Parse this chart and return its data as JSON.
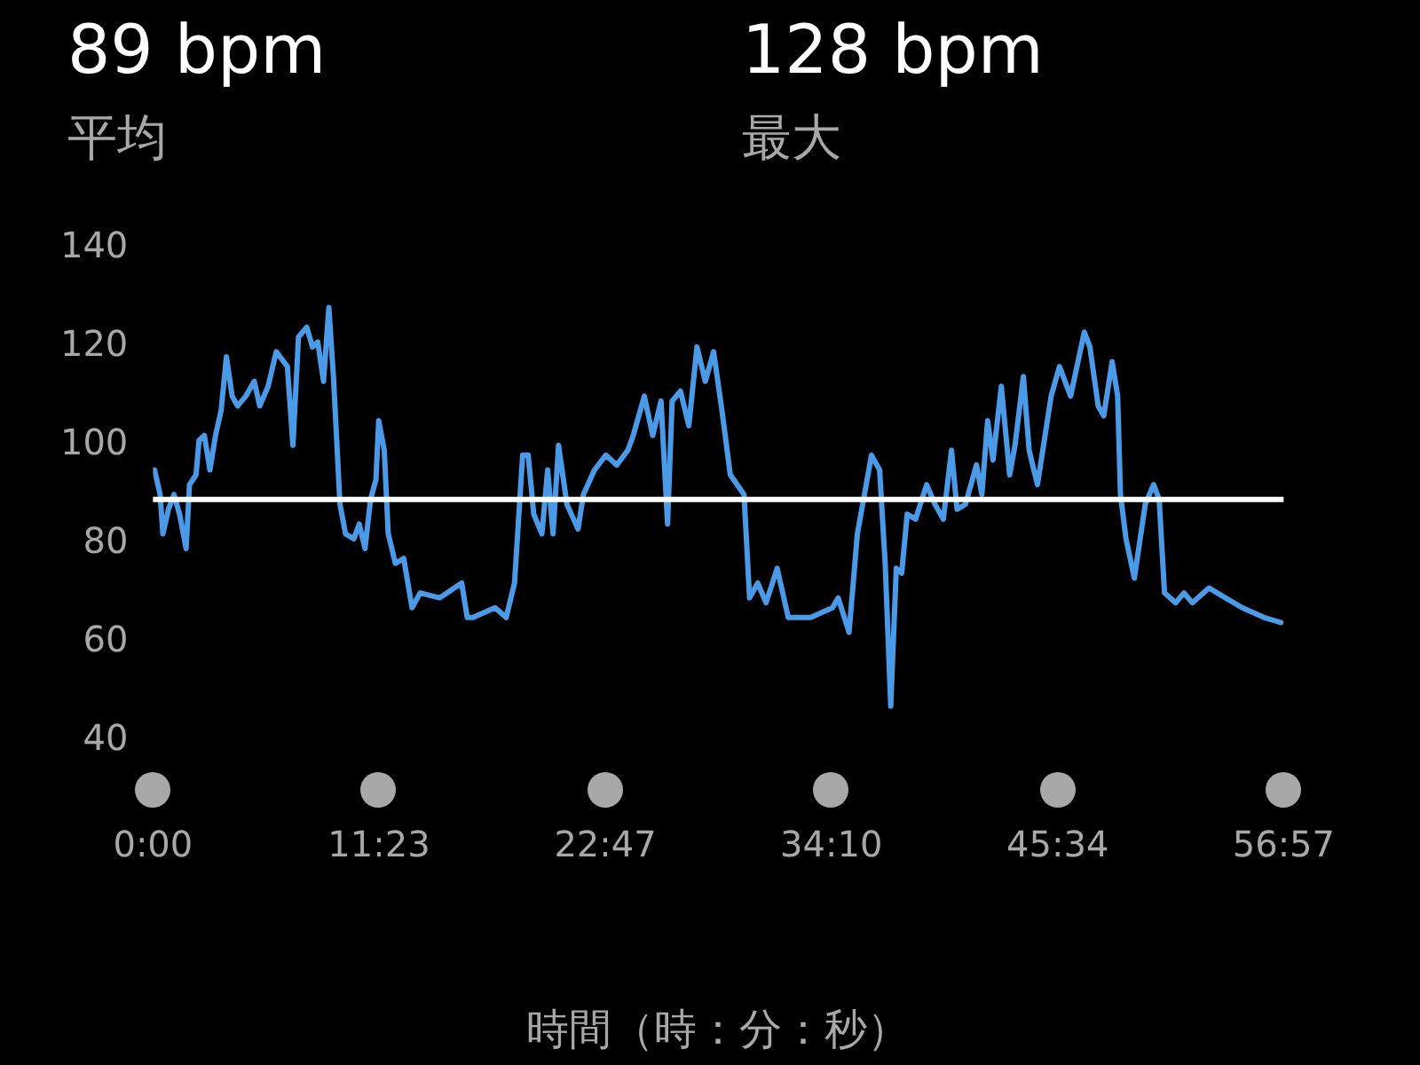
{
  "chart_data": {
    "type": "line",
    "annotations": [
      "89 bpm",
      "平均",
      "128 bpm",
      "最大"
    ],
    "xlabel": "時間（時：分：秒）",
    "xlim": [
      0,
      56.95
    ],
    "xticks": [
      {
        "value": 0,
        "label": "0:00"
      },
      {
        "value": 11.383,
        "label": "11:23"
      },
      {
        "value": 22.783,
        "label": "22:47"
      },
      {
        "value": 34.167,
        "label": "34:10"
      },
      {
        "value": 45.567,
        "label": "45:34"
      },
      {
        "value": 56.95,
        "label": "56:57"
      }
    ],
    "ylim": [
      40,
      140
    ],
    "yticks": [
      40,
      60,
      80,
      100,
      120,
      140
    ],
    "ref_lines": [
      {
        "axis": "y",
        "value": 89,
        "color": "#ffffff"
      }
    ],
    "marker": "none",
    "line_style": "solid",
    "legend": false,
    "series": [
      {
        "color": "#4a9ae8",
        "x": [
          0.08,
          0.36,
          0.5,
          0.78,
          1.06,
          1.34,
          1.67,
          1.84,
          2.17,
          2.32,
          2.59,
          2.87,
          3.15,
          3.43,
          3.7,
          3.99,
          4.26,
          4.68,
          5.1,
          5.38,
          5.8,
          6.21,
          6.77,
          7.05,
          7.33,
          7.75,
          8.03,
          8.3,
          8.59,
          8.86,
          9.09,
          9.28,
          9.42,
          9.7,
          10.12,
          10.39,
          10.68,
          10.96,
          11.23,
          11.37,
          11.65,
          11.85,
          12.21,
          12.63,
          13.05,
          13.46,
          14.44,
          15.55,
          15.83,
          16.12,
          17.23,
          17.79,
          18.21,
          18.62,
          18.9,
          19.18,
          19.59,
          19.88,
          20.15,
          20.43,
          20.85,
          21.41,
          21.68,
          22.24,
          22.81,
          23.36,
          23.92,
          24.19,
          24.75,
          25.17,
          25.59,
          25.92,
          26.15,
          26.57,
          26.99,
          27.4,
          27.82,
          28.24,
          28.66,
          29.08,
          29.77,
          30.05,
          30.46,
          30.88,
          31.44,
          32.0,
          33.12,
          34.23,
          34.51,
          35.06,
          35.48,
          36.19,
          36.6,
          36.88,
          37.16,
          37.44,
          37.71,
          37.99,
          38.41,
          38.97,
          39.39,
          39.81,
          40.22,
          40.5,
          40.92,
          41.48,
          41.75,
          42.04,
          42.31,
          42.73,
          43.15,
          43.42,
          43.84,
          44.13,
          44.55,
          45.24,
          45.66,
          46.22,
          46.91,
          47.19,
          47.61,
          47.89,
          48.31,
          48.59,
          48.73,
          49.01,
          49.43,
          49.98,
          50.4,
          50.68,
          50.95,
          51.51,
          51.93,
          52.35,
          53.19,
          54.02,
          54.86,
          55.97,
          56.81
        ],
        "values": [
          95,
          90,
          82,
          87,
          90,
          86,
          79,
          92,
          94,
          101,
          102,
          95,
          102,
          107,
          118,
          110,
          108,
          110,
          113,
          108,
          112,
          119,
          116,
          100,
          122,
          124,
          120,
          121,
          113,
          128,
          114,
          99,
          88,
          82,
          81,
          84,
          79,
          89,
          93,
          105,
          99,
          82,
          76,
          77,
          67,
          70,
          69,
          72,
          65,
          65,
          67,
          65,
          72,
          98,
          98,
          86,
          82,
          95,
          82,
          100,
          88,
          83,
          90,
          95,
          98,
          96,
          99,
          102,
          110,
          102,
          109,
          84,
          109,
          111,
          104,
          120,
          113,
          119,
          107,
          94,
          90,
          69,
          72,
          68,
          75,
          65,
          65,
          67,
          69,
          62,
          82,
          98,
          95,
          76,
          47,
          75,
          74,
          86,
          85,
          92,
          88,
          85,
          99,
          87,
          88,
          96,
          90,
          105,
          97,
          112,
          94,
          100,
          114,
          99,
          92,
          110,
          116,
          110,
          123,
          120,
          108,
          106,
          117,
          110,
          90,
          81,
          73,
          88,
          92,
          89,
          70,
          68,
          70,
          68,
          71,
          69,
          67,
          65,
          64
        ]
      }
    ]
  }
}
